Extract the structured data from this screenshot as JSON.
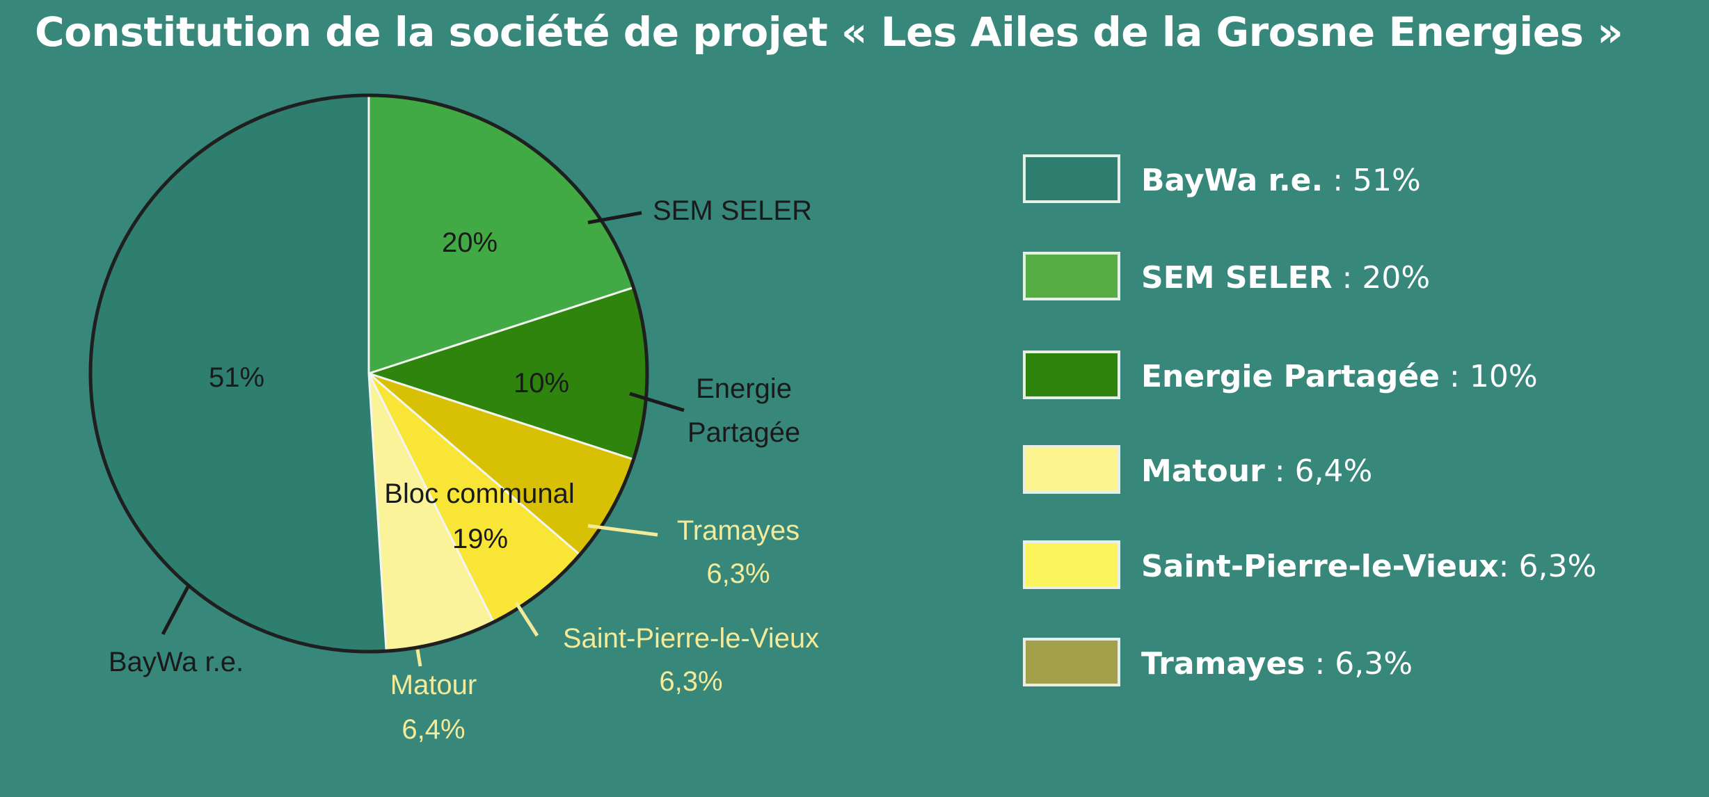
{
  "title": "Constitution de la société de projet « Les Ailes de la Grosne Energies »",
  "colors": {
    "background": "#37877b",
    "outline": "#1f1f1f",
    "callout_dark": "#1a1a1a",
    "callout_light": "#f4eb9a"
  },
  "chart_data": {
    "type": "pie",
    "title": "Constitution de la société de projet « Les Ailes de la Grosne Energies »",
    "slices": [
      {
        "name": "SEM SELER",
        "value": 20,
        "value_label": "20%",
        "color": "#42aa44"
      },
      {
        "name": "Energie Partagée",
        "value": 10,
        "value_label": "10%",
        "color": "#2e840d"
      },
      {
        "name": "Tramayes",
        "value": 6.3,
        "value_label": "6,3%",
        "color": "#d8c104"
      },
      {
        "name": "Saint-Pierre-le-Vieux",
        "value": 6.3,
        "value_label": "6,3%",
        "color": "#f8e536"
      },
      {
        "name": "Matour",
        "value": 6.4,
        "value_label": "6,4%",
        "color": "#fbf39a"
      },
      {
        "name": "BayWa r.e.",
        "value": 51,
        "value_label": "51%",
        "color": "#2f7f70"
      }
    ],
    "group": {
      "label": "Bloc communal",
      "value_label": "19%",
      "members": [
        "Tramayes",
        "Saint-Pierre-le-Vieux",
        "Matour"
      ]
    },
    "callouts": {
      "sem": {
        "name": "SEM SELER"
      },
      "energie": {
        "line1": "Energie",
        "line2": "Partagée"
      },
      "tramayes": {
        "name": "Tramayes",
        "value": "6,3%"
      },
      "spv": {
        "name": "Saint-Pierre-le-Vieux",
        "value": "6,3%"
      },
      "matour": {
        "name": "Matour",
        "value": "6,4%"
      },
      "baywa": {
        "name": "BayWa r.e."
      }
    },
    "legend": [
      {
        "name": "BayWa r.e.",
        "value": " : 51%",
        "color": "#2f7f70"
      },
      {
        "name": "SEM SELER",
        "value": " : 20%",
        "color": "#55ad44"
      },
      {
        "name": "Energie Partagée",
        "value": " : 10%",
        "color": "#2e840d"
      },
      {
        "name": "Matour",
        "value": " : 6,4%",
        "color": "#fbf48f"
      },
      {
        "name": "Saint-Pierre-le-Vieux",
        "value": ": 6,3%",
        "color": "#fcf45c"
      },
      {
        "name": "Tramayes",
        "value": " : 6,3%",
        "color": "#a3a04c"
      }
    ],
    "legend_placement": "right"
  }
}
